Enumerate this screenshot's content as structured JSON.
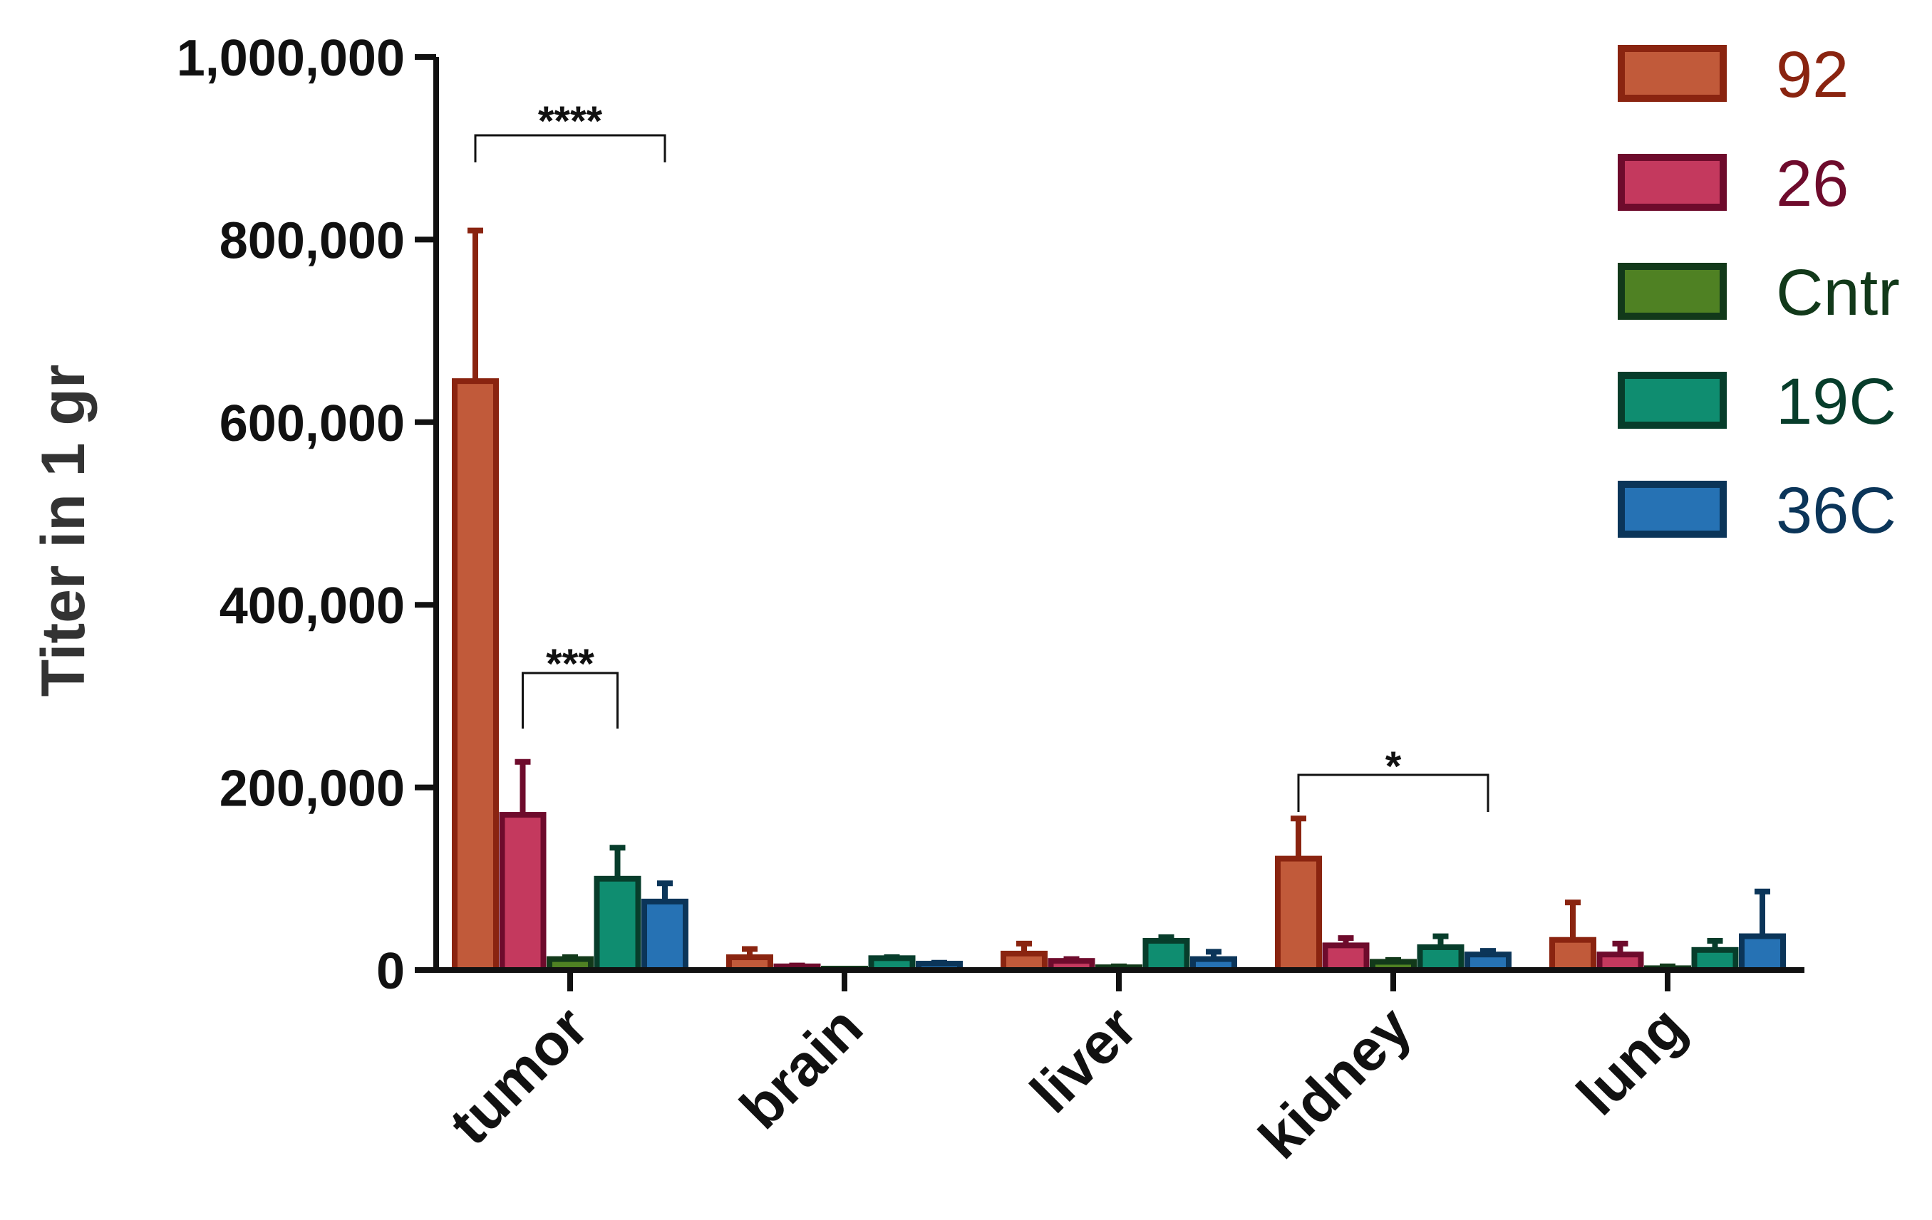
{
  "chart_data": {
    "type": "bar",
    "title": "",
    "xlabel": "",
    "ylabel": "Titer in 1 gr",
    "ylim": [
      0,
      1000000
    ],
    "yticks": [
      0,
      200000,
      400000,
      600000,
      800000,
      1000000
    ],
    "ytick_labels": [
      "0",
      "200,000",
      "400,000",
      "600,000",
      "800,000",
      "1,000,000"
    ],
    "grid": false,
    "legend_position": "top-right",
    "categories": [
      "tumor",
      "brain",
      "liver",
      "kidney",
      "lung"
    ],
    "series": [
      {
        "name": "92",
        "fill": "#c15a3a",
        "stroke": "#8a2410",
        "values": [
          645000,
          14000,
          18000,
          122000,
          33000
        ],
        "errors": [
          165000,
          9000,
          11000,
          44000,
          41000
        ]
      },
      {
        "name": "26",
        "fill": "#c4395e",
        "stroke": "#6e0b2c",
        "values": [
          170000,
          4000,
          10000,
          27000,
          17000
        ],
        "errors": [
          58000,
          1000,
          2000,
          8000,
          12000
        ]
      },
      {
        "name": "Cntr",
        "fill": "#4f8123",
        "stroke": "#12391a",
        "values": [
          12000,
          1000,
          3000,
          9000,
          2000
        ],
        "errors": [
          2000,
          500,
          1000,
          2000,
          2000
        ]
      },
      {
        "name": "19C",
        "fill": "#0f8d70",
        "stroke": "#073d2b",
        "values": [
          100000,
          13000,
          32000,
          25000,
          22000
        ],
        "errors": [
          34000,
          1000,
          4000,
          12000,
          10000
        ]
      },
      {
        "name": "36C",
        "fill": "#2672b4",
        "stroke": "#0b3559",
        "values": [
          75000,
          7000,
          12000,
          17000,
          37000
        ],
        "errors": [
          20000,
          1000,
          8000,
          4000,
          49000
        ]
      }
    ],
    "significance": [
      {
        "label": "****",
        "category": "tumor",
        "from_series": "92",
        "to_series": "36C"
      },
      {
        "label": "***",
        "category": "tumor",
        "from_series": "26",
        "to_series": "19C"
      },
      {
        "label": "*",
        "category": "kidney",
        "from_series": "92",
        "to_series": "36C"
      }
    ]
  }
}
